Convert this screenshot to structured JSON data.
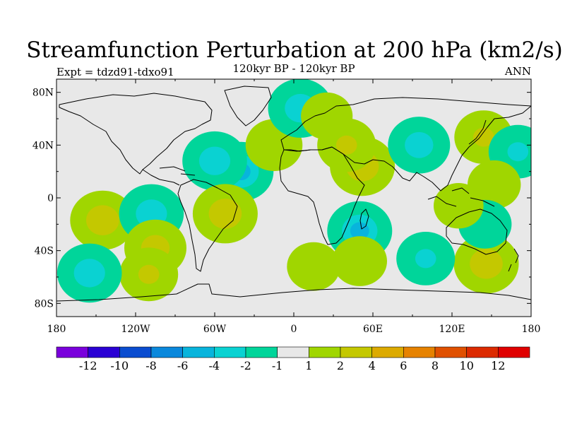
{
  "chart_data": {
    "type": "heatmap",
    "title": "Streamfunction Perturbation at 200 hPa (km2/s)",
    "left_label": "Expt = tdzd91-tdxo91",
    "center_label": "120kyr BP - 120kyr BP",
    "right_label": "ANN",
    "xlim": [
      -180,
      180
    ],
    "ylim": [
      -90,
      90
    ],
    "x_ticks": [
      {
        "value": -180,
        "label": "180"
      },
      {
        "value": -120,
        "label": "120W"
      },
      {
        "value": -60,
        "label": "60W"
      },
      {
        "value": 0,
        "label": "0"
      },
      {
        "value": 60,
        "label": "60E"
      },
      {
        "value": 120,
        "label": "120E"
      },
      {
        "value": 180,
        "label": "180"
      }
    ],
    "y_ticks": [
      {
        "value": 80,
        "label": "80N"
      },
      {
        "value": 40,
        "label": "40N"
      },
      {
        "value": 0,
        "label": "0"
      },
      {
        "value": -40,
        "label": "40S"
      },
      {
        "value": -80,
        "label": "80S"
      }
    ],
    "colorbar": {
      "levels": [
        "-12",
        "-10",
        "-8",
        "-6",
        "-4",
        "-2",
        "-1",
        "1",
        "2",
        "4",
        "6",
        "8",
        "10",
        "12"
      ],
      "colors": [
        "#7a00dc",
        "#2a00d4",
        "#0a4cd0",
        "#0a88dc",
        "#08b4dc",
        "#0ad2d2",
        "#00d59a",
        "#e8e8e8",
        "#a0d600",
        "#c4c800",
        "#dcaa00",
        "#e68200",
        "#e05000",
        "#dc2a00",
        "#e00000"
      ]
    },
    "anomaly_centers": [
      {
        "lon": -40,
        "lat": 20,
        "value": -4.5
      },
      {
        "lon": -60,
        "lat": 28,
        "value": -3
      },
      {
        "lon": -145,
        "lat": -17,
        "value": 3.5
      },
      {
        "lon": -108,
        "lat": -12,
        "value": -3
      },
      {
        "lon": -52,
        "lat": -12,
        "value": 3.5
      },
      {
        "lon": -105,
        "lat": -38,
        "value": 2.5
      },
      {
        "lon": -110,
        "lat": -58,
        "value": 2
      },
      {
        "lon": -155,
        "lat": -57,
        "value": -3
      },
      {
        "lon": 50,
        "lat": -25,
        "value": -4.5
      },
      {
        "lon": 52,
        "lat": 24,
        "value": 3.5
      },
      {
        "lon": 40,
        "lat": 40,
        "value": 2
      },
      {
        "lon": -15,
        "lat": 40,
        "value": 1.8
      },
      {
        "lon": 5,
        "lat": 68,
        "value": -3
      },
      {
        "lon": 95,
        "lat": 40,
        "value": -2.5
      },
      {
        "lon": 144,
        "lat": 46,
        "value": 2
      },
      {
        "lon": 170,
        "lat": 35,
        "value": -2
      },
      {
        "lon": 152,
        "lat": 10,
        "value": 1.5
      },
      {
        "lon": 146,
        "lat": -50,
        "value": 3.5
      },
      {
        "lon": 100,
        "lat": -46,
        "value": -2
      },
      {
        "lon": 145,
        "lat": -20,
        "value": -1.5
      },
      {
        "lon": 125,
        "lat": -6,
        "value": 1.3
      },
      {
        "lon": 50,
        "lat": -48,
        "value": 1.6
      },
      {
        "lon": 15,
        "lat": -52,
        "value": 1.5
      },
      {
        "lon": 25,
        "lat": 62,
        "value": 1.4
      }
    ]
  }
}
